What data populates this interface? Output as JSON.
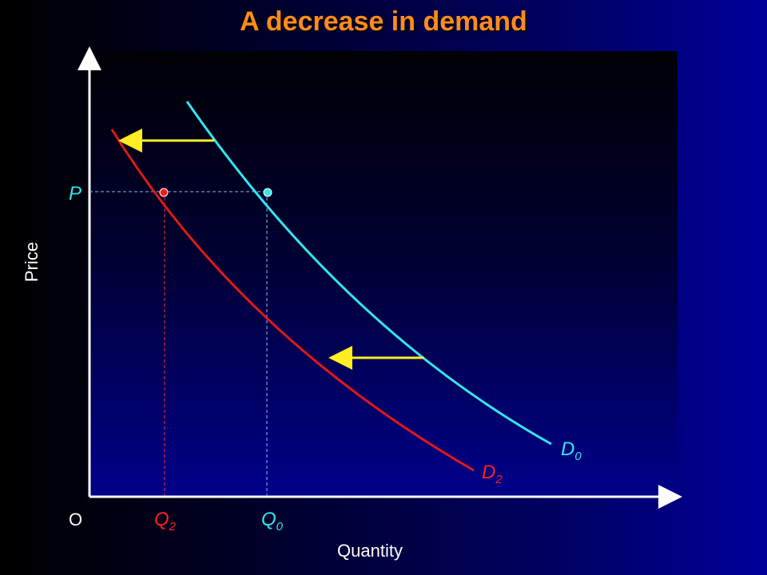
{
  "title": "A decrease in demand",
  "axes": {
    "y_label": "Price",
    "x_label": "Quantity",
    "origin_label": "O"
  },
  "price_label": "P",
  "quantity_labels": [
    {
      "base": "Q",
      "sub": "2",
      "color": "#ff2020"
    },
    {
      "base": "Q",
      "sub": "0",
      "color": "#33e6f0"
    }
  ],
  "curves": [
    {
      "base": "D",
      "sub": "0",
      "color": "#33e6f0"
    },
    {
      "base": "D",
      "sub": "2",
      "color": "#ff2020"
    }
  ],
  "shift_arrow_color": "#ffee22"
}
